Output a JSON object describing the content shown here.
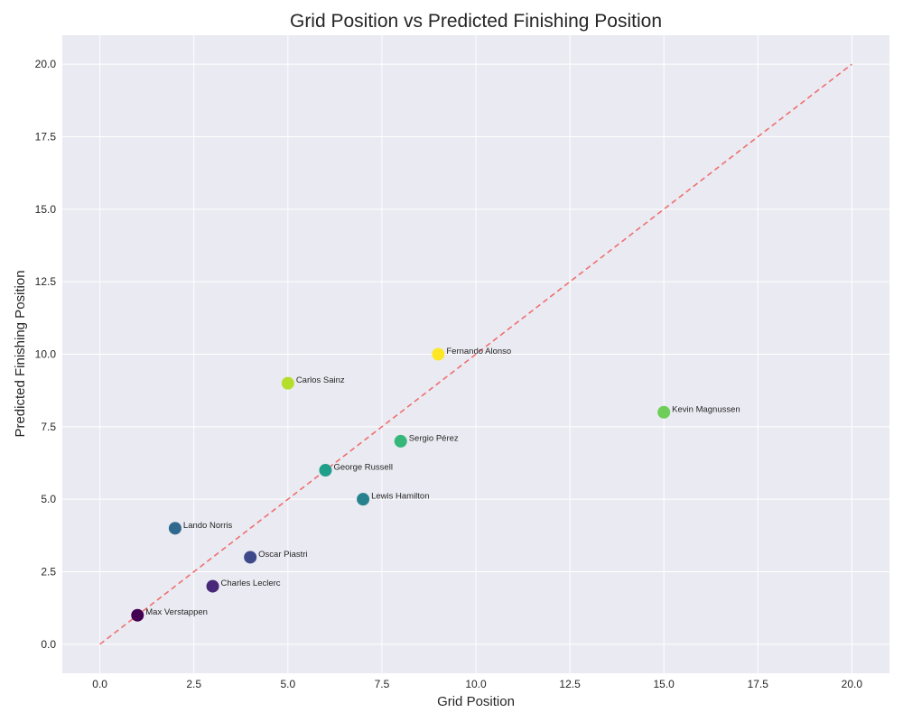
{
  "chart_data": {
    "type": "scatter",
    "title": "Grid Position vs Predicted Finishing Position",
    "xlabel": "Grid Position",
    "ylabel": "Predicted Finishing Position",
    "xlim": [
      -1,
      21
    ],
    "ylim": [
      -1,
      21
    ],
    "xticks": [
      0.0,
      2.5,
      5.0,
      7.5,
      10.0,
      12.5,
      15.0,
      17.5,
      20.0
    ],
    "yticks": [
      0.0,
      2.5,
      5.0,
      7.5,
      10.0,
      12.5,
      15.0,
      17.5,
      20.0
    ],
    "xtick_labels": [
      "0.0",
      "2.5",
      "5.0",
      "7.5",
      "10.0",
      "12.5",
      "15.0",
      "17.5",
      "20.0"
    ],
    "ytick_labels": [
      "0.0",
      "2.5",
      "5.0",
      "7.5",
      "10.0",
      "12.5",
      "15.0",
      "17.5",
      "20.0"
    ],
    "grid": true,
    "reference_line": {
      "style": "dashed",
      "color": "#ef6f6f",
      "from": [
        0,
        0
      ],
      "to": [
        20,
        20
      ]
    },
    "points": [
      {
        "label": "Max Verstappen",
        "x": 1,
        "y": 1,
        "color": "#440154"
      },
      {
        "label": "Lando Norris",
        "x": 2,
        "y": 4,
        "color": "#31688e"
      },
      {
        "label": "Charles Leclerc",
        "x": 3,
        "y": 2,
        "color": "#482878"
      },
      {
        "label": "Oscar Piastri",
        "x": 4,
        "y": 3,
        "color": "#3e4989"
      },
      {
        "label": "Carlos Sainz",
        "x": 5,
        "y": 9,
        "color": "#b5de2b"
      },
      {
        "label": "George Russell",
        "x": 6,
        "y": 6,
        "color": "#1f9e89"
      },
      {
        "label": "Lewis Hamilton",
        "x": 7,
        "y": 5,
        "color": "#26828e"
      },
      {
        "label": "Sergio Pérez",
        "x": 8,
        "y": 7,
        "color": "#35b779"
      },
      {
        "label": "Fernando Alonso",
        "x": 9,
        "y": 10,
        "color": "#fde725"
      },
      {
        "label": "Kevin Magnussen",
        "x": 15,
        "y": 8,
        "color": "#6ece58"
      }
    ],
    "colors": {
      "plot_background": "#eaeaf2",
      "grid": "#ffffff",
      "text": "#262626"
    }
  }
}
